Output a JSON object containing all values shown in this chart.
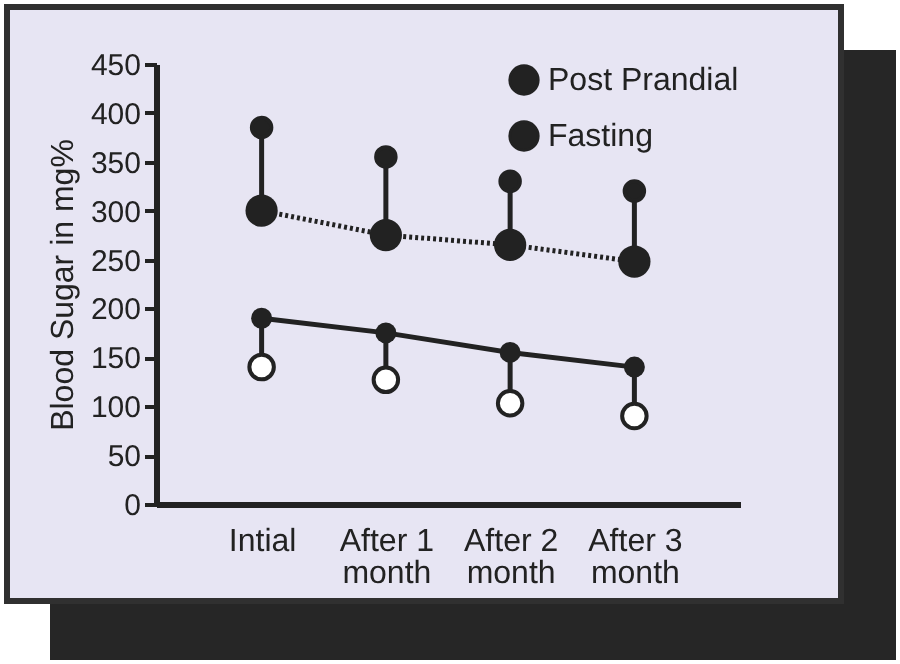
{
  "chart_data": {
    "type": "line",
    "ylabel": "Blood Sugar in mg%",
    "categories": [
      "Intial",
      "After 1 month",
      "After 2 month",
      "After 3 month"
    ],
    "series": [
      {
        "name": "Post Prandial",
        "color": "#222222",
        "line_style": "dotted",
        "values": [
          300,
          275,
          265,
          248
        ]
      },
      {
        "name": "Fasting",
        "color": "#222222",
        "line_style": "solid",
        "values": [
          190,
          175,
          155,
          140
        ]
      },
      {
        "type": "scatter",
        "color": "#222222",
        "values": [
          385,
          355,
          330,
          320
        ]
      },
      {
        "type": "scatter",
        "color": "#ffffff",
        "values": [
          140,
          127,
          103,
          90
        ]
      }
    ],
    "ylim": [
      0,
      450
    ],
    "yticks": [
      0,
      50,
      100,
      150,
      200,
      250,
      300,
      350,
      400,
      450
    ],
    "marker": "circle",
    "legend": "top right",
    "grid": false
  }
}
